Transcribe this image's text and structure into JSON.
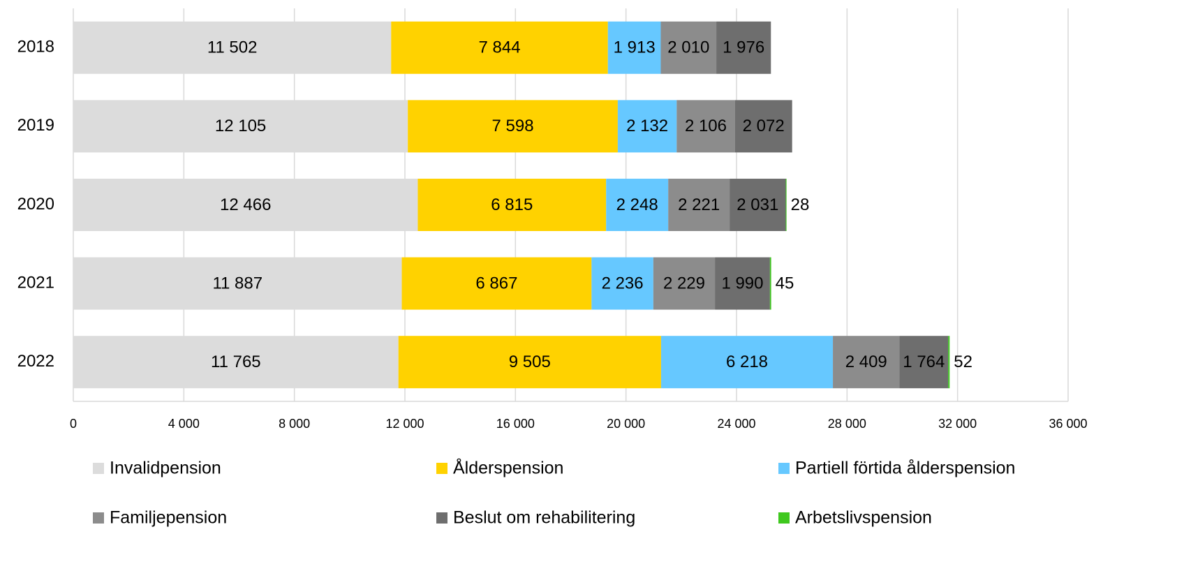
{
  "chart_data": {
    "type": "stacked-bar-horizontal",
    "categories": [
      "2018",
      "2019",
      "2020",
      "2021",
      "2022"
    ],
    "series": [
      {
        "name": "Invalidpension",
        "color": "#dcdcdc",
        "values": [
          11502,
          12105,
          12466,
          11887,
          11765
        ],
        "value_labels": [
          "11 502",
          "12 105",
          "12 466",
          "11 887",
          "11 765"
        ]
      },
      {
        "name": "Ålderspension",
        "color": "#ffd200",
        "values": [
          7844,
          7598,
          6815,
          6867,
          9505
        ],
        "value_labels": [
          "7 844",
          "7 598",
          "6 815",
          "6 867",
          "9 505"
        ]
      },
      {
        "name": "Partiell förtida ålderspension",
        "color": "#66c8ff",
        "values": [
          1913,
          2132,
          2248,
          2236,
          6218
        ],
        "value_labels": [
          "1 913",
          "2 132",
          "2 248",
          "2 236",
          "6 218"
        ]
      },
      {
        "name": "Familjepension",
        "color": "#8c8c8c",
        "values": [
          2010,
          2106,
          2221,
          2229,
          2409
        ],
        "value_labels": [
          "2 010",
          "2 106",
          "2 221",
          "2 229",
          "2 409"
        ]
      },
      {
        "name": "Beslut om rehabilitering",
        "color": "#6e6e6e",
        "values": [
          1976,
          2072,
          2031,
          1990,
          1764
        ],
        "value_labels": [
          "1 976",
          "2 072",
          "2 031",
          "1 990",
          "1 764"
        ]
      },
      {
        "name": "Arbetslivspension",
        "color": "#3fc81e",
        "values": [
          null,
          null,
          28,
          45,
          52
        ]
      }
    ],
    "xlim": [
      0,
      36000
    ],
    "xticks": [
      0,
      {
        "value": 4000,
        "label": "4 000"
      },
      {
        "value": 8000,
        "label": "8 000"
      },
      {
        "value": 12000,
        "label": "12 000"
      },
      {
        "value": 16000,
        "label": "16 000"
      },
      {
        "value": 20000,
        "label": "20 000"
      },
      {
        "value": 24000,
        "label": "24 000"
      },
      {
        "value": 28000,
        "label": "28 000"
      },
      {
        "value": 32000,
        "label": "32 000"
      },
      {
        "value": 36000,
        "label": "36 000"
      }
    ],
    "grid": true,
    "legend": "bottom"
  }
}
